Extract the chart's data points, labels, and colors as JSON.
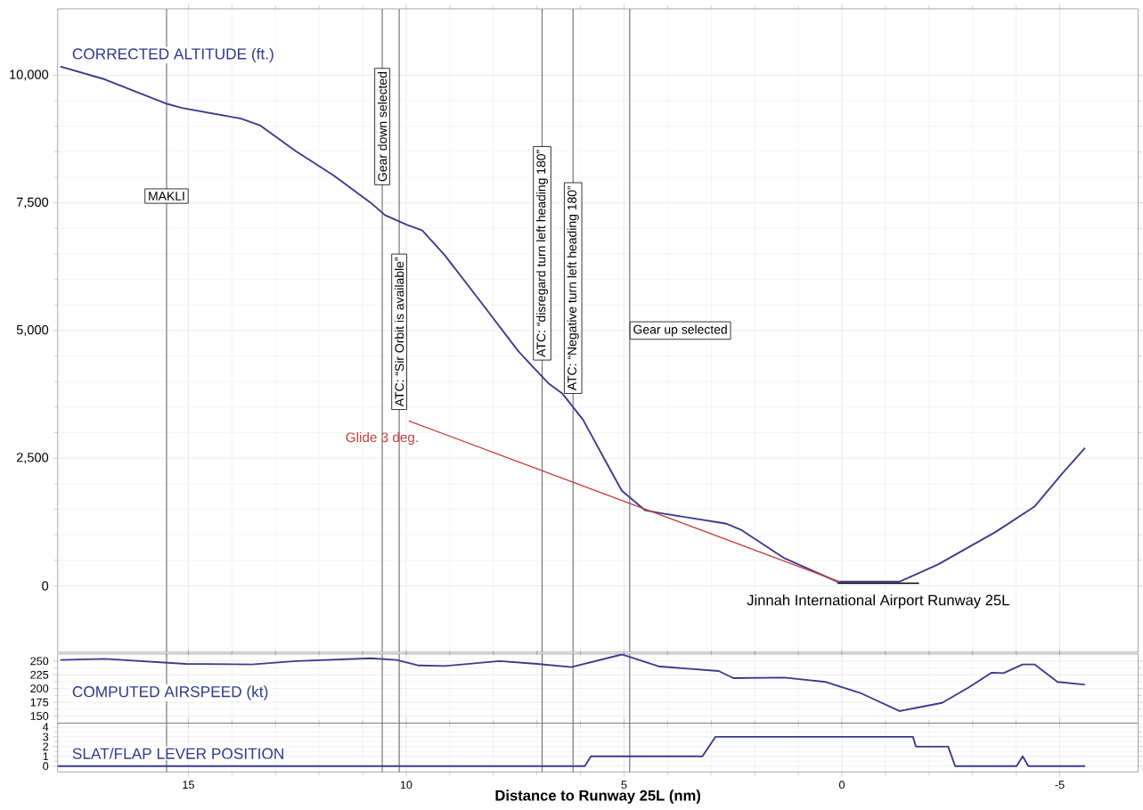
{
  "chart_data": [
    {
      "type": "line",
      "title": "CORRECTED ALTITUDE (ft.)",
      "xlim": [
        18,
        -6.8
      ],
      "xticks": [
        15,
        10,
        5,
        0,
        -5
      ],
      "ylim": [
        -1300,
        11300
      ],
      "yticks": [
        0,
        {
          "value": 2500,
          "label": "2,500"
        },
        {
          "value": 5000,
          "label": "5,000"
        },
        {
          "value": 7500,
          "label": "7,500"
        },
        {
          "value": 10000,
          "label": "10,000"
        }
      ],
      "tick_labels": "y",
      "grid": true,
      "series": [
        {
          "color": "#3a3a8f",
          "x": [
            17.94,
            16.92,
            15.49,
            15.15,
            13.79,
            13.36,
            12.53,
            11.67,
            10.81,
            10.49,
            9.98,
            9.63,
            9.12,
            8.27,
            7.43,
            7.17,
            6.74,
            6.42,
            5.94,
            5.41,
            5.05,
            4.52,
            4.07,
            2.67,
            2.3,
            1.32,
            0.1,
            -1.32,
            -2.21,
            -3.54,
            -4.42,
            -5.05,
            -5.58
          ],
          "values": [
            10170,
            9920,
            9440,
            9360,
            9150,
            9020,
            8510,
            8040,
            7500,
            7260,
            7070,
            6960,
            6480,
            5540,
            4600,
            4360,
            3970,
            3770,
            3250,
            2420,
            1860,
            1480,
            1410,
            1220,
            1090,
            540,
            80,
            80,
            420,
            1060,
            1550,
            2190,
            2700
          ]
        },
        {
          "name": "Glide 3 deg.",
          "color": "#c8403a",
          "x": [
            9.94,
            0
          ],
          "values": [
            3230,
            60
          ]
        },
        {
          "name": "Jinnah International Airport Runway 25L",
          "color": "#000000",
          "x": [
            0.1,
            -1.77
          ],
          "values": [
            50,
            50
          ]
        }
      ],
      "ref_lines": [
        {
          "axis": "x",
          "value": 15.5,
          "label": "MAKLI",
          "color": "#777777"
        },
        {
          "axis": "x",
          "value": 10.55,
          "label": "Gear down selected",
          "color": "#777777"
        },
        {
          "axis": "x",
          "value": 10.16,
          "label": "ATC: “Sir Orbit is available”",
          "color": "#777777"
        },
        {
          "axis": "x",
          "value": 6.88,
          "label": "ATC: “disregard turn left heading 180”",
          "color": "#777777"
        },
        {
          "axis": "x",
          "value": 6.17,
          "label": "ATC: “Negative turn left heading 180”",
          "color": "#777777"
        },
        {
          "axis": "x",
          "value": 4.87,
          "label": "Gear up selected",
          "color": "#777777"
        }
      ]
    },
    {
      "type": "line",
      "title": "COMPUTED AIRSPEED (kt)",
      "xlim": [
        18,
        -6.8
      ],
      "xticks": [
        15,
        10,
        5,
        0,
        -5
      ],
      "ylim": [
        137,
        263
      ],
      "yticks": [
        150,
        175,
        200,
        225,
        250
      ],
      "tick_labels": "y",
      "grid": true,
      "series": [
        {
          "color": "#3a3a8f",
          "x": [
            17.94,
            16.92,
            15.07,
            13.54,
            12.53,
            10.81,
            10.22,
            9.71,
            9.12,
            7.86,
            7.0,
            6.21,
            5.05,
            4.18,
            2.83,
            2.49,
            1.32,
            0.37,
            -0.45,
            -1.32,
            -2.3,
            -2.91,
            -3.44,
            -3.71,
            -4.15,
            -4.42,
            -4.95,
            -5.58
          ],
          "values": [
            252,
            254,
            245,
            244,
            250,
            255,
            252,
            242,
            241,
            250,
            245,
            239,
            262,
            240,
            232,
            219,
            220,
            212,
            191,
            159,
            174,
            202,
            229,
            228,
            244,
            244,
            212,
            207
          ]
        }
      ],
      "ref_lines": [
        {
          "axis": "x",
          "value": 15.5,
          "color": "#777777"
        },
        {
          "axis": "x",
          "value": 10.55,
          "color": "#777777"
        },
        {
          "axis": "x",
          "value": 10.16,
          "color": "#777777"
        },
        {
          "axis": "x",
          "value": 6.88,
          "color": "#777777"
        },
        {
          "axis": "x",
          "value": 6.17,
          "color": "#777777"
        },
        {
          "axis": "x",
          "value": 4.87,
          "color": "#777777"
        }
      ]
    },
    {
      "type": "line",
      "title": "SLAT/FLAP LEVER POSITION",
      "xlabel": "Distance to Runway 25L (nm)",
      "xlim": [
        18,
        -6.8
      ],
      "xticks": [
        15,
        10,
        5,
        0,
        -5
      ],
      "ylim": [
        -0.6,
        4.4
      ],
      "yticks": [
        0,
        1,
        2,
        3,
        4
      ],
      "grid": true,
      "series": [
        {
          "color": "#3a3a8f",
          "x": [
            18,
            5.9,
            5.76,
            3.2,
            2.9,
            -1.63,
            -1.7,
            -2.44,
            -2.6,
            -4.01,
            -4.15,
            -4.28,
            -5.58
          ],
          "values": [
            0,
            0,
            1,
            1,
            3,
            3,
            2,
            2,
            0,
            0,
            1,
            0,
            0
          ]
        }
      ],
      "ref_lines": [
        {
          "axis": "x",
          "value": 15.5,
          "color": "#777777"
        },
        {
          "axis": "x",
          "value": 10.55,
          "color": "#777777"
        },
        {
          "axis": "x",
          "value": 10.16,
          "color": "#777777"
        },
        {
          "axis": "x",
          "value": 6.88,
          "color": "#777777"
        },
        {
          "axis": "x",
          "value": 6.17,
          "color": "#777777"
        },
        {
          "axis": "x",
          "value": 4.87,
          "color": "#777777"
        }
      ]
    }
  ]
}
